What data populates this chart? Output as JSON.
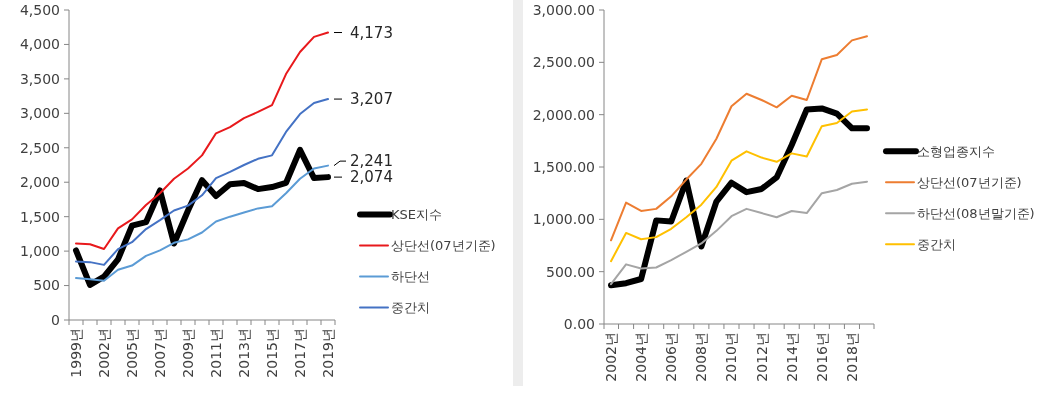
{
  "chart_data": [
    {
      "type": "line",
      "categories": [
        "1999년",
        null,
        "2002년",
        null,
        "2005년",
        null,
        "2007년",
        null,
        "2009년",
        null,
        "2011년",
        null,
        "2013년",
        null,
        "2015년",
        null,
        "2017년",
        null,
        "2019년"
      ],
      "series": [
        {
          "name": "KSE지수",
          "color": "#000000",
          "values": [
            1010,
            510,
            630,
            880,
            1370,
            1420,
            1880,
            1110,
            1590,
            2030,
            1800,
            1970,
            1990,
            1900,
            1930,
            1990,
            2470,
            2060,
            2074
          ]
        },
        {
          "name": "상단선(07년기준)",
          "color": "#e8191c",
          "values": [
            1110,
            1100,
            1030,
            1330,
            1460,
            1670,
            1840,
            2050,
            2200,
            2390,
            2710,
            2800,
            2930,
            3020,
            3120,
            3570,
            3890,
            4110,
            4173
          ]
        },
        {
          "name": "하단선",
          "color": "#5b9bd5",
          "values": [
            610,
            590,
            570,
            730,
            790,
            930,
            1010,
            1120,
            1170,
            1270,
            1430,
            1500,
            1560,
            1620,
            1650,
            1840,
            2050,
            2200,
            2241
          ]
        },
        {
          "name": "중간치",
          "color": "#4472c4",
          "values": [
            850,
            840,
            800,
            1030,
            1130,
            1320,
            1450,
            1590,
            1660,
            1810,
            2060,
            2150,
            2250,
            2340,
            2390,
            2730,
            2990,
            3150,
            3207
          ]
        }
      ],
      "ylim": [
        0,
        4500
      ],
      "yticks": [
        0,
        {
          "value": 500,
          "label": "500"
        },
        {
          "value": 1000,
          "label": "1,000"
        },
        {
          "value": 1500,
          "label": "1,500"
        },
        {
          "value": 2000,
          "label": "2,000"
        },
        {
          "value": 2500,
          "label": "2,500"
        },
        {
          "value": 3000,
          "label": "3,000"
        },
        {
          "value": 3500,
          "label": "3,500"
        },
        {
          "value": 4000,
          "label": "4,000"
        },
        {
          "value": 4500,
          "label": "4,500"
        }
      ],
      "annotations": [
        {
          "text": "4,173",
          "x": "2019년",
          "y": 4173
        },
        {
          "text": "3,207",
          "x": "2019년",
          "y": 3207
        },
        {
          "text": "2,241",
          "x": "2019년",
          "y": 2241
        },
        {
          "text": "2,074",
          "x": "2019년",
          "y": 2074
        }
      ],
      "grid": false,
      "legend": "right",
      "marker": "none",
      "line_style": "solid"
    },
    {
      "type": "line",
      "categories": [
        "2002년",
        null,
        "2004년",
        null,
        "2006년",
        null,
        "2008년",
        null,
        "2010년",
        null,
        "2012년",
        null,
        "2014년",
        null,
        "2016년",
        null,
        "2018년",
        null
      ],
      "series": [
        {
          "name": "소형업종지수",
          "color": "#000000",
          "values": [
            370,
            390,
            430,
            990,
            980,
            1370,
            740,
            1170,
            1350,
            1260,
            1290,
            1400,
            1710,
            2050,
            2060,
            2010,
            1870,
            1870
          ]
        },
        {
          "name": "상단선(07년기준)",
          "color": "#ed7d31",
          "values": [
            800,
            1160,
            1080,
            1100,
            1220,
            1380,
            1530,
            1770,
            2080,
            2200,
            2140,
            2070,
            2180,
            2140,
            2530,
            2570,
            2710,
            2750
          ]
        },
        {
          "name": "하단선(08년말기준)",
          "color": "#a5a5a5",
          "values": [
            380,
            570,
            530,
            540,
            610,
            690,
            770,
            890,
            1030,
            1100,
            1060,
            1020,
            1080,
            1060,
            1250,
            1280,
            1340,
            1360
          ]
        },
        {
          "name": "중간치",
          "color": "#ffc000",
          "values": [
            600,
            870,
            810,
            830,
            910,
            1020,
            1140,
            1310,
            1560,
            1650,
            1590,
            1550,
            1630,
            1600,
            1890,
            1920,
            2030,
            2050
          ]
        }
      ],
      "ylim": [
        0,
        3000
      ],
      "yticks": [
        {
          "value": 0,
          "label": "0.00"
        },
        {
          "value": 500,
          "label": "500.00"
        },
        {
          "value": 1000,
          "label": "1,000.00"
        },
        {
          "value": 1500,
          "label": "1,500.00"
        },
        {
          "value": 2000,
          "label": "2,000.00"
        },
        {
          "value": 2500,
          "label": "2,500.00"
        },
        {
          "value": 3000,
          "label": "3,000.00"
        }
      ],
      "grid": false,
      "legend": "right",
      "marker": "none",
      "line_style": "solid"
    }
  ]
}
